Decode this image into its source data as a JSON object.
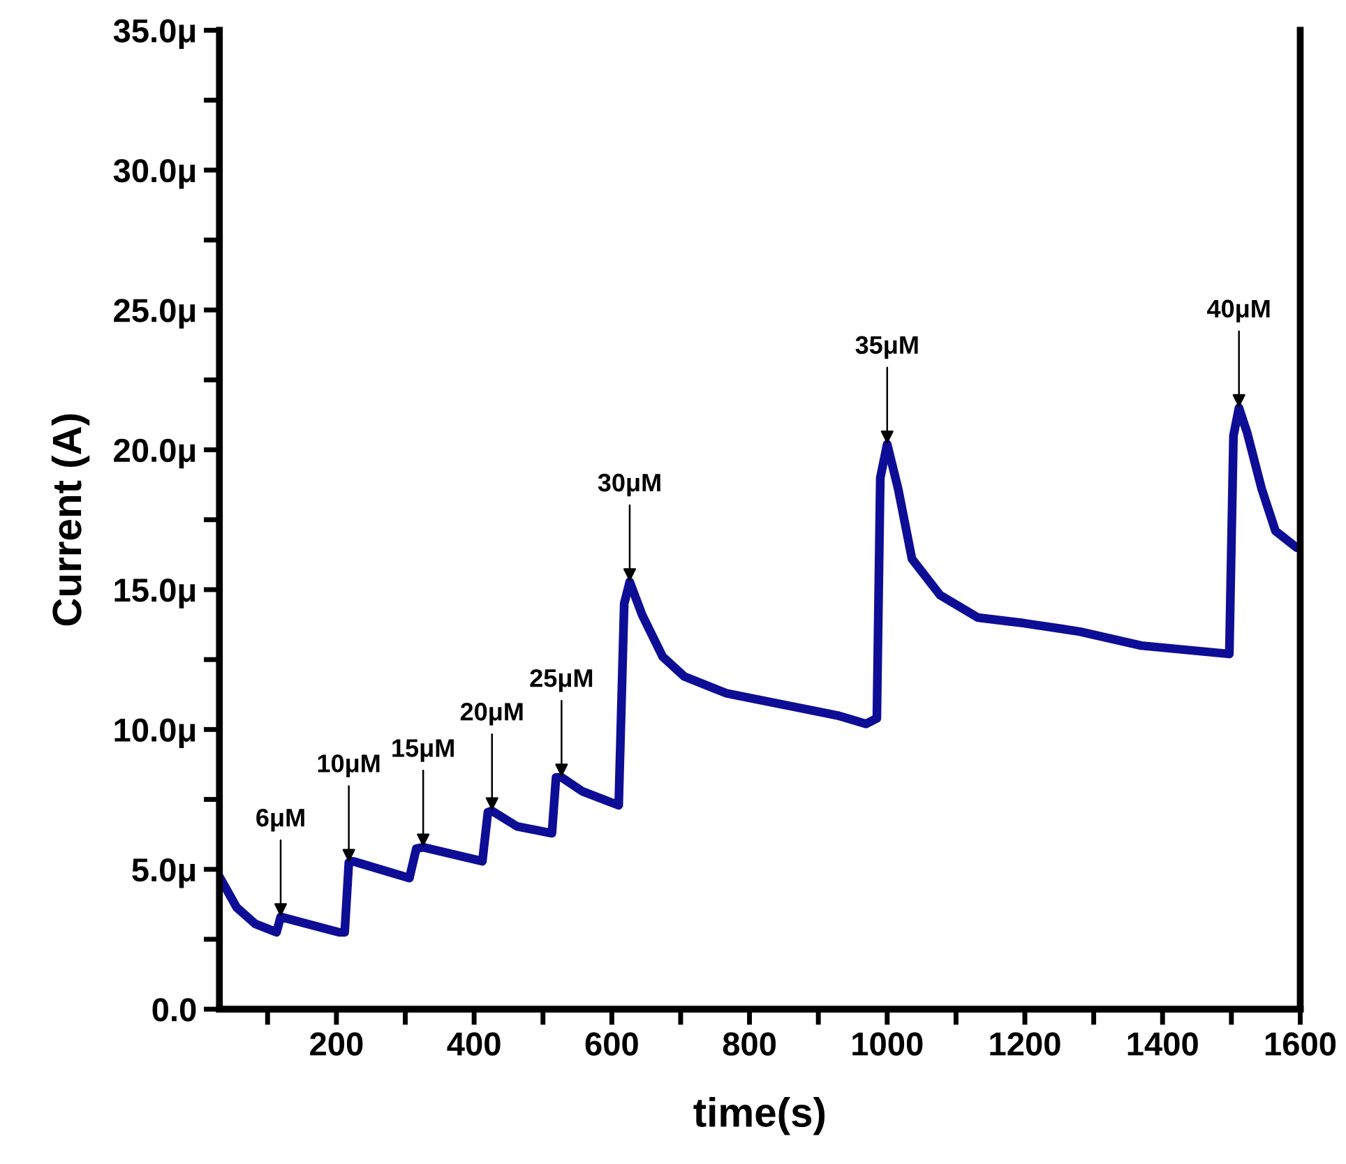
{
  "chart_data": {
    "type": "line",
    "xlabel": "time(s)",
    "ylabel": "Current (A)",
    "xlim": [
      30,
      1600
    ],
    "xticks": [
      {
        "value": 100,
        "label": null
      },
      200,
      {
        "value": 300,
        "label": null
      },
      400,
      {
        "value": 500,
        "label": null
      },
      600,
      {
        "value": 700,
        "label": null
      },
      800,
      {
        "value": 900,
        "label": null
      },
      1000,
      {
        "value": 1100,
        "label": null
      },
      1200,
      {
        "value": 1300,
        "label": null
      },
      1400,
      {
        "value": 1500,
        "label": null
      },
      1600
    ],
    "ylim": [
      0,
      35
    ],
    "yticks": [
      {
        "value": 0,
        "label": "0.0"
      },
      {
        "value": 2.5,
        "label": null
      },
      {
        "value": 5,
        "label": "5.0μ"
      },
      {
        "value": 7.5,
        "label": null
      },
      {
        "value": 10,
        "label": "10.0μ"
      },
      {
        "value": 12.5,
        "label": null
      },
      {
        "value": 15,
        "label": "15.0μ"
      },
      {
        "value": 17.5,
        "label": null
      },
      {
        "value": 20,
        "label": "20.0μ"
      },
      {
        "value": 22.5,
        "label": null
      },
      {
        "value": 25,
        "label": "25.0μ"
      },
      {
        "value": 27.5,
        "label": null
      },
      {
        "value": 30,
        "label": "30.0μ"
      },
      {
        "value": 32.5,
        "label": null
      },
      {
        "value": 35,
        "label": "35.0μ"
      }
    ],
    "grid": false,
    "legend": false,
    "marker": "none",
    "line_style": "solid",
    "series": [
      {
        "color": "#0d0d96",
        "x": [
          30,
          55,
          82,
          113,
          119,
          204,
          212,
          218,
          224,
          306,
          316,
          326,
          412,
          420,
          426,
          462,
          513,
          519,
          527,
          557,
          610,
          618,
          626,
          644,
          674,
          705,
          766,
          847,
          928,
          969,
          985,
          990,
          1000,
          1016,
          1036,
          1077,
          1132,
          1199,
          1280,
          1369,
          1497,
          1503,
          1511,
          1523,
          1544,
          1564,
          1595
        ],
        "values": [
          4.74,
          3.64,
          3.05,
          2.75,
          3.3,
          2.75,
          2.75,
          5.24,
          5.29,
          4.69,
          5.74,
          5.79,
          5.29,
          7.04,
          7.09,
          6.54,
          6.29,
          8.29,
          8.29,
          7.79,
          7.29,
          14.5,
          15.28,
          14.1,
          12.6,
          11.9,
          11.3,
          10.9,
          10.5,
          10.2,
          10.4,
          19.0,
          20.2,
          18.6,
          16.1,
          14.8,
          14.0,
          13.8,
          13.5,
          13.0,
          12.7,
          20.5,
          21.5,
          20.6,
          18.6,
          17.1,
          16.5
        ]
      }
    ],
    "annotations": [
      {
        "text": "6μM",
        "x": 119,
        "y": 3.3
      },
      {
        "text": "10μM",
        "x": 218,
        "y": 5.24
      },
      {
        "text": "15μM",
        "x": 326,
        "y": 5.79
      },
      {
        "text": "20μM",
        "x": 426,
        "y": 7.09
      },
      {
        "text": "25μM",
        "x": 527,
        "y": 8.29
      },
      {
        "text": "30μM",
        "x": 626,
        "y": 15.28
      },
      {
        "text": "35μM",
        "x": 1000,
        "y": 20.2
      },
      {
        "text": "40μM",
        "x": 1511,
        "y": 21.5
      }
    ]
  }
}
